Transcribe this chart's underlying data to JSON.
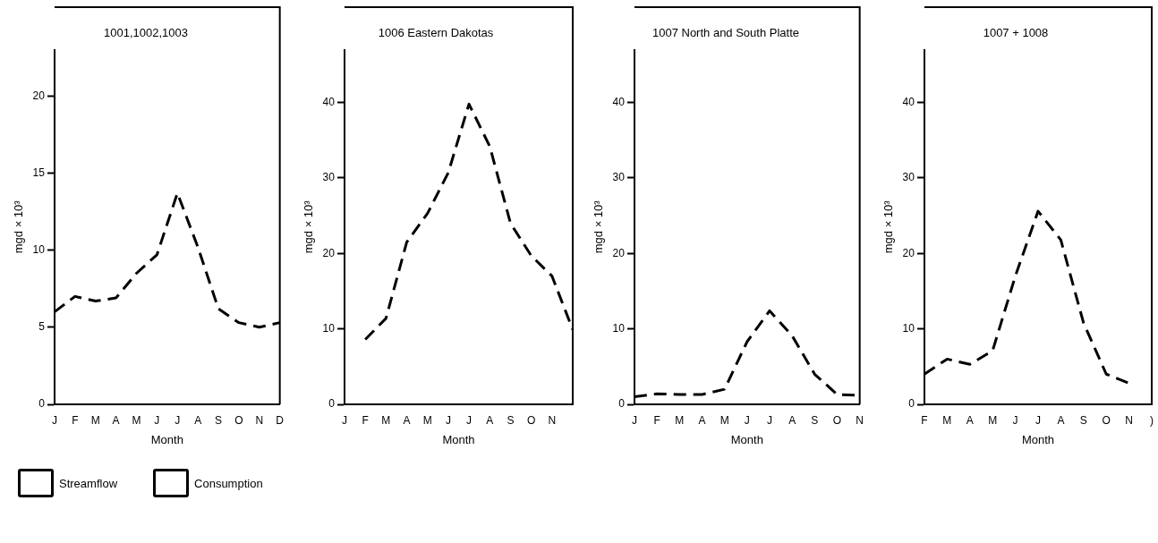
{
  "chart_data": [
    {
      "type": "line",
      "title": "1001,1002,1003",
      "xlabel": "Month",
      "ylabel": "mgd × 10³",
      "categories": [
        "J",
        "F",
        "M",
        "A",
        "M",
        "J",
        "J",
        "A",
        "S",
        "O",
        "N",
        "D"
      ],
      "series": [
        {
          "color": "#000000",
          "values": [
            6.0,
            7.0,
            6.7,
            6.9,
            8.5,
            9.7,
            13.7,
            10.2,
            6.2,
            5.3,
            5.0,
            5.3
          ]
        }
      ],
      "ylim": [
        0,
        23
      ],
      "yticks": [
        0,
        5,
        10,
        15,
        20
      ],
      "line_style": "dashed",
      "marker": "none",
      "grid": false,
      "legend": false
    },
    {
      "type": "line",
      "title": "1006 Eastern Dakotas",
      "xlabel": "Month",
      "ylabel": "mgd × 10³",
      "categories": [
        "J",
        "F",
        "M",
        "A",
        "M",
        "J",
        "J",
        "A",
        "S",
        "O",
        "N",
        null
      ],
      "series": [
        {
          "color": "#000000",
          "values": [
            null,
            8.6,
            11.4,
            21.5,
            25.3,
            30.7,
            39.8,
            34.2,
            24.0,
            19.7,
            17.0,
            9.9
          ]
        }
      ],
      "ylim": [
        0,
        47
      ],
      "yticks": [
        0,
        10,
        20,
        30,
        40
      ],
      "line_style": "dashed",
      "marker": "none",
      "grid": false,
      "legend": false
    },
    {
      "type": "line",
      "title": "1007 North and South Platte",
      "xlabel": "Month",
      "ylabel": "mgd × 10³",
      "categories": [
        "J",
        "F",
        "M",
        "A",
        "M",
        "J",
        "J",
        "A",
        "S",
        "O",
        "N"
      ],
      "series": [
        {
          "color": "#000000",
          "values": [
            1.0,
            1.4,
            1.3,
            1.3,
            2.0,
            8.3,
            12.4,
            9.1,
            4.0,
            1.3,
            1.2
          ]
        }
      ],
      "ylim": [
        0,
        47
      ],
      "yticks": [
        0,
        10,
        20,
        30,
        40
      ],
      "line_style": "dashed",
      "marker": "none",
      "grid": false,
      "legend": false
    },
    {
      "type": "line",
      "title": "1007 + 1008",
      "xlabel": "Month",
      "ylabel": "mgd × 10³",
      "categories": [
        "F",
        "M",
        "A",
        "M",
        "J",
        "J",
        "A",
        "S",
        "O",
        "N",
        ")"
      ],
      "series": [
        {
          "color": "#000000",
          "values": [
            4.0,
            6.0,
            5.3,
            7.1,
            17.0,
            25.6,
            21.8,
            10.8,
            4.0,
            2.8,
            null
          ]
        }
      ],
      "ylim": [
        0,
        47
      ],
      "yticks": [
        0,
        10,
        20,
        30,
        40
      ],
      "line_style": "dashed",
      "marker": "none",
      "grid": false,
      "legend": false
    },
    {
      "type": "other",
      "annotations": [
        "Streamflow",
        "Consumption"
      ]
    }
  ]
}
